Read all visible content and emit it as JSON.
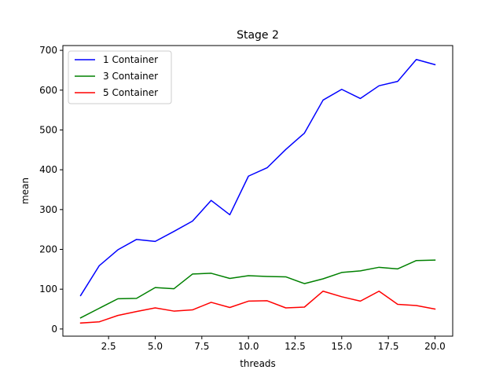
{
  "chart_data": {
    "type": "line",
    "title": "Stage 2",
    "xlabel": "threads",
    "ylabel": "mean",
    "xlim": [
      0.05,
      20.95
    ],
    "ylim": [
      -18,
      712
    ],
    "xticks": [
      2.5,
      5.0,
      7.5,
      10.0,
      12.5,
      15.0,
      17.5,
      20.0
    ],
    "xtick_labels": [
      "2.5",
      "5.0",
      "7.5",
      "10.0",
      "12.5",
      "15.0",
      "17.5",
      "20.0"
    ],
    "yticks": [
      0,
      100,
      200,
      300,
      400,
      500,
      600,
      700
    ],
    "ytick_labels": [
      "0",
      "100",
      "200",
      "300",
      "400",
      "500",
      "600",
      "700"
    ],
    "legend_position": "top-left",
    "grid": false,
    "x": [
      1,
      2,
      3,
      4,
      5,
      6,
      7,
      8,
      9,
      10,
      11,
      12,
      13,
      14,
      15,
      16,
      17,
      18,
      19,
      20
    ],
    "series": [
      {
        "name": "1 Container",
        "color": "#0000ff",
        "values": [
          84,
          159,
          199,
          225,
          220,
          245,
          271,
          323,
          287,
          384,
          405,
          451,
          492,
          575,
          602,
          579,
          611,
          622,
          677,
          664
        ]
      },
      {
        "name": "3 Container",
        "color": "#008000",
        "values": [
          28,
          52,
          76,
          77,
          104,
          101,
          138,
          140,
          127,
          134,
          132,
          131,
          114,
          126,
          142,
          146,
          155,
          151,
          172,
          173
        ]
      },
      {
        "name": "5 Container",
        "color": "#ff0000",
        "values": [
          15,
          18,
          34,
          44,
          53,
          45,
          48,
          67,
          54,
          70,
          71,
          53,
          55,
          95,
          81,
          70,
          95,
          62,
          59,
          50
        ]
      }
    ]
  }
}
